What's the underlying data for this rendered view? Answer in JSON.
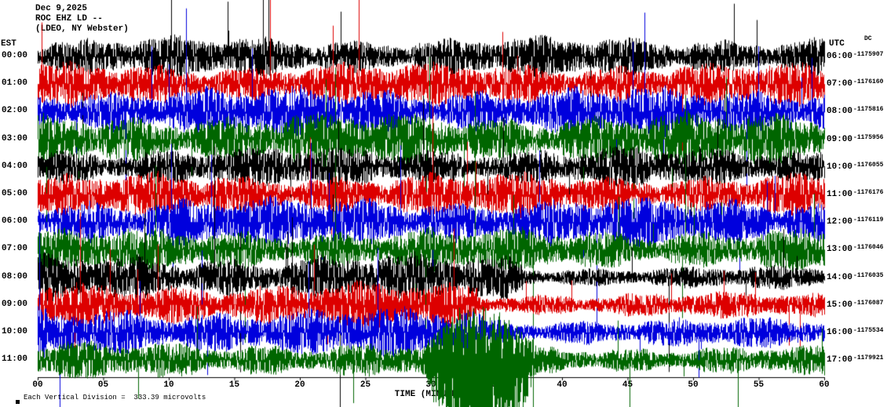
{
  "header": {
    "date": "Dec 9,2025",
    "station": "ROC EHZ LD --",
    "location": "(LDEO, NY Webster)"
  },
  "left_axis": {
    "label": "EST"
  },
  "right_axis": {
    "label": "UTC",
    "sub_label": "DC"
  },
  "x_axis": {
    "title": "TIME (MINUTES)",
    "ticks": [
      "00",
      "05",
      "10",
      "15",
      "20",
      "25",
      "30",
      "35",
      "40",
      "45",
      "50",
      "55",
      "60"
    ],
    "range_minutes": [
      0,
      60
    ]
  },
  "footer": {
    "scale_note": "Each Vertical Division =  333.39 microvolts"
  },
  "chart_data": {
    "type": "line",
    "subtype": "helicorder-seismogram",
    "x_unit": "minutes",
    "x_range": [
      0,
      60
    ],
    "rows_are_hours": true,
    "trace_colors_cycle": [
      "#000000",
      "#dd0000",
      "#0000dd",
      "#006600"
    ],
    "rows": [
      {
        "est": "00:00",
        "utc": "06:00",
        "dc": "-1175907",
        "color": "#000000",
        "amp": 24
      },
      {
        "est": "01:00",
        "utc": "07:00",
        "dc": "-1176160",
        "color": "#dd0000",
        "amp": 26
      },
      {
        "est": "02:00",
        "utc": "08:00",
        "dc": "-1175816",
        "color": "#0000dd",
        "amp": 30
      },
      {
        "est": "03:00",
        "utc": "09:00",
        "dc": "-1175956",
        "color": "#006600",
        "amp": 32
      },
      {
        "est": "04:00",
        "utc": "10:00",
        "dc": "-1176055",
        "color": "#000000",
        "amp": 24
      },
      {
        "est": "05:00",
        "utc": "11:00",
        "dc": "-1176176",
        "color": "#dd0000",
        "amp": 26
      },
      {
        "est": "06:00",
        "utc": "12:00",
        "dc": "-1176119",
        "color": "#0000dd",
        "amp": 30
      },
      {
        "est": "07:00",
        "utc": "13:00",
        "dc": "-1176046",
        "color": "#006600",
        "amp": 26
      },
      {
        "est": "08:00",
        "utc": "14:00",
        "dc": "-1176035",
        "color": "#000000",
        "amp": 28,
        "taper": {
          "after_min": 37,
          "factor": 0.5
        }
      },
      {
        "est": "09:00",
        "utc": "15:00",
        "dc": "-1176087",
        "color": "#dd0000",
        "amp": 28,
        "taper": {
          "after_min": 33.5,
          "factor": 0.55
        }
      },
      {
        "est": "10:00",
        "utc": "16:00",
        "dc": "-1175534",
        "color": "#0000dd",
        "amp": 30,
        "taper": {
          "after_min": 34,
          "factor": 0.6
        }
      },
      {
        "est": "11:00",
        "utc": "17:00",
        "dc": "-1179921",
        "color": "#006600",
        "amp": 22,
        "taper": {
          "after_min": 38,
          "factor": 0.8
        },
        "burst": {
          "start_min": 29.5,
          "end_min": 38,
          "amp": 95
        }
      }
    ]
  }
}
